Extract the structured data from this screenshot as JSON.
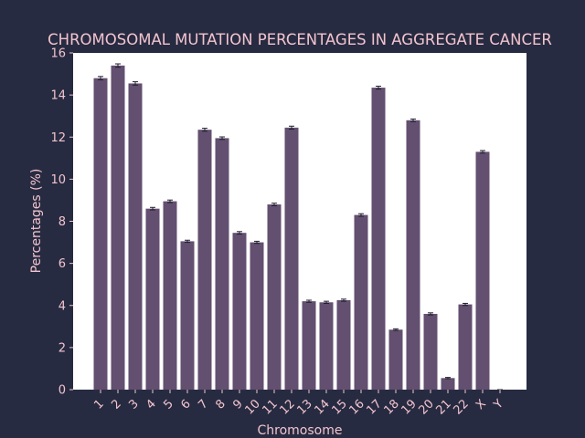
{
  "colors": {
    "background": "#272b41",
    "plot_area": "#ffffff",
    "bar": "#634f70",
    "text": "#f2c4ce",
    "error_bar": "#1f1f2e"
  },
  "chart_data": {
    "type": "bar",
    "title": "CHROMOSOMAL MUTATION PERCENTAGES IN AGGREGATE CANCER",
    "xlabel": "Chromosome",
    "ylabel": "Percentages (%)",
    "categories": [
      "1",
      "2",
      "3",
      "4",
      "5",
      "6",
      "7",
      "8",
      "9",
      "10",
      "11",
      "12",
      "13",
      "14",
      "15",
      "16",
      "17",
      "18",
      "19",
      "20",
      "21",
      "22",
      "X",
      "Y"
    ],
    "values": [
      14.8,
      15.4,
      14.55,
      8.6,
      8.95,
      7.05,
      12.35,
      11.95,
      7.45,
      7.0,
      8.8,
      12.45,
      4.2,
      4.15,
      4.25,
      8.3,
      14.35,
      2.85,
      12.8,
      3.6,
      0.55,
      4.05,
      11.3,
      0.0
    ],
    "errors": [
      0.08,
      0.08,
      0.08,
      0.06,
      0.06,
      0.05,
      0.07,
      0.06,
      0.06,
      0.05,
      0.06,
      0.07,
      0.05,
      0.05,
      0.05,
      0.06,
      0.07,
      0.04,
      0.06,
      0.05,
      0.03,
      0.05,
      0.06,
      0.0
    ],
    "ylim": [
      0,
      16
    ],
    "yticks": [
      0,
      2,
      4,
      6,
      8,
      10,
      12,
      14,
      16
    ],
    "grid": false,
    "legend": "none"
  }
}
